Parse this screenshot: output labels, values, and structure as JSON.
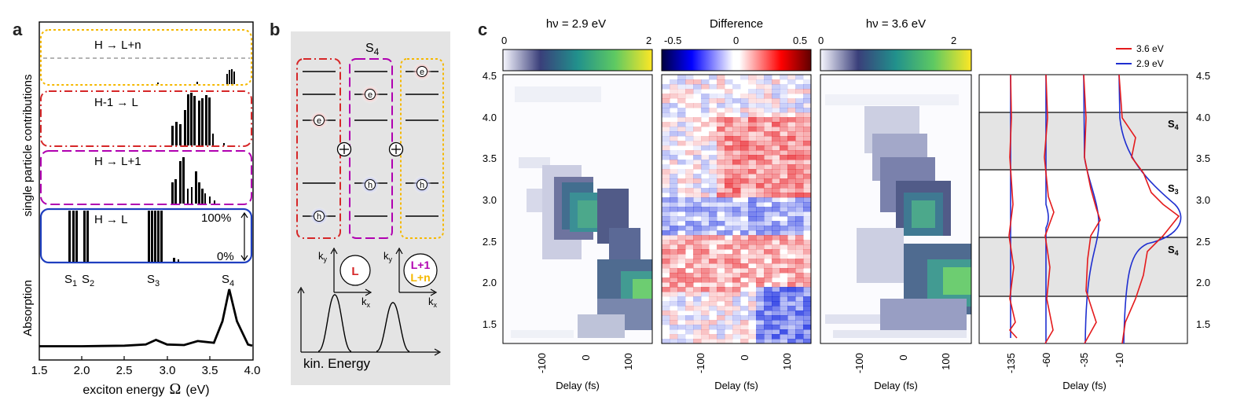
{
  "panels": {
    "a": "a",
    "b": "b",
    "c": "c"
  },
  "panel_a": {
    "ylabel_top": "single particle contributions",
    "ylabel_bottom": "Absorption",
    "xlabel": "exciton energy",
    "xlabel_symbol": "Ω",
    "xlabel_unit": "(eV)",
    "box_titles": [
      "H → L+n",
      "H-1 → L",
      "H → L+1",
      "H → L"
    ],
    "box_colors": [
      "#f5b800",
      "#d62728",
      "#b000b0",
      "#1f3fbf"
    ],
    "scale_100": "100%",
    "scale_0": "0%",
    "state_labels": [
      "S",
      "S",
      "S",
      "S"
    ],
    "state_subs": [
      "1",
      "2",
      "3",
      "4"
    ],
    "xticks": [
      "1.5",
      "2.0",
      "2.5",
      "3.0",
      "3.5",
      "4.0"
    ]
  },
  "panel_b": {
    "title": "S",
    "title_sub": "4",
    "electron": "e",
    "hole": "h",
    "ky": "k",
    "ky_sub": "y",
    "kx": "k",
    "kx_sub": "x",
    "circle1": "L",
    "circle2a": "L+1",
    "circle2b": "L+n",
    "energy_label": "kin. Energy"
  },
  "panel_c": {
    "map_titles": [
      "hν = 2.9 eV",
      "Difference",
      "hν = 3.6 eV"
    ],
    "cbar1_ticks": [
      "0",
      "2"
    ],
    "cbar2_ticks": [
      "-0.5",
      "0",
      "0.5"
    ],
    "cbar3_ticks": [
      "0",
      "2"
    ],
    "yticks": [
      "4.5",
      "4.0",
      "3.5",
      "3.0",
      "2.5",
      "2.0",
      "1.5"
    ],
    "xticks": [
      "-100",
      "0",
      "100"
    ],
    "xlabel": "Delay (fs)",
    "legend": [
      "3.6 eV",
      "2.9 eV"
    ],
    "legend_colors": [
      "#e41a1c",
      "#1f2fd0"
    ],
    "profile_xticks": [
      "-135",
      "-60",
      "-35",
      "-10"
    ],
    "state_tags": [
      "S",
      "S",
      "S"
    ],
    "state_tag_subs": [
      "4",
      "3",
      "4"
    ]
  },
  "chart_data": {
    "type": "line",
    "title": "Absorption",
    "xlabel": "exciton energy Ω (eV)",
    "x": [
      1.5,
      2.0,
      2.5,
      2.75,
      2.87,
      3.0,
      3.2,
      3.36,
      3.55,
      3.65,
      3.73,
      3.82,
      3.95,
      4.0
    ],
    "values": [
      0.02,
      0.02,
      0.03,
      0.05,
      0.13,
      0.05,
      0.04,
      0.11,
      0.08,
      0.45,
      1.0,
      0.45,
      0.05,
      0.03
    ],
    "xlim": [
      1.5,
      4.0
    ]
  }
}
